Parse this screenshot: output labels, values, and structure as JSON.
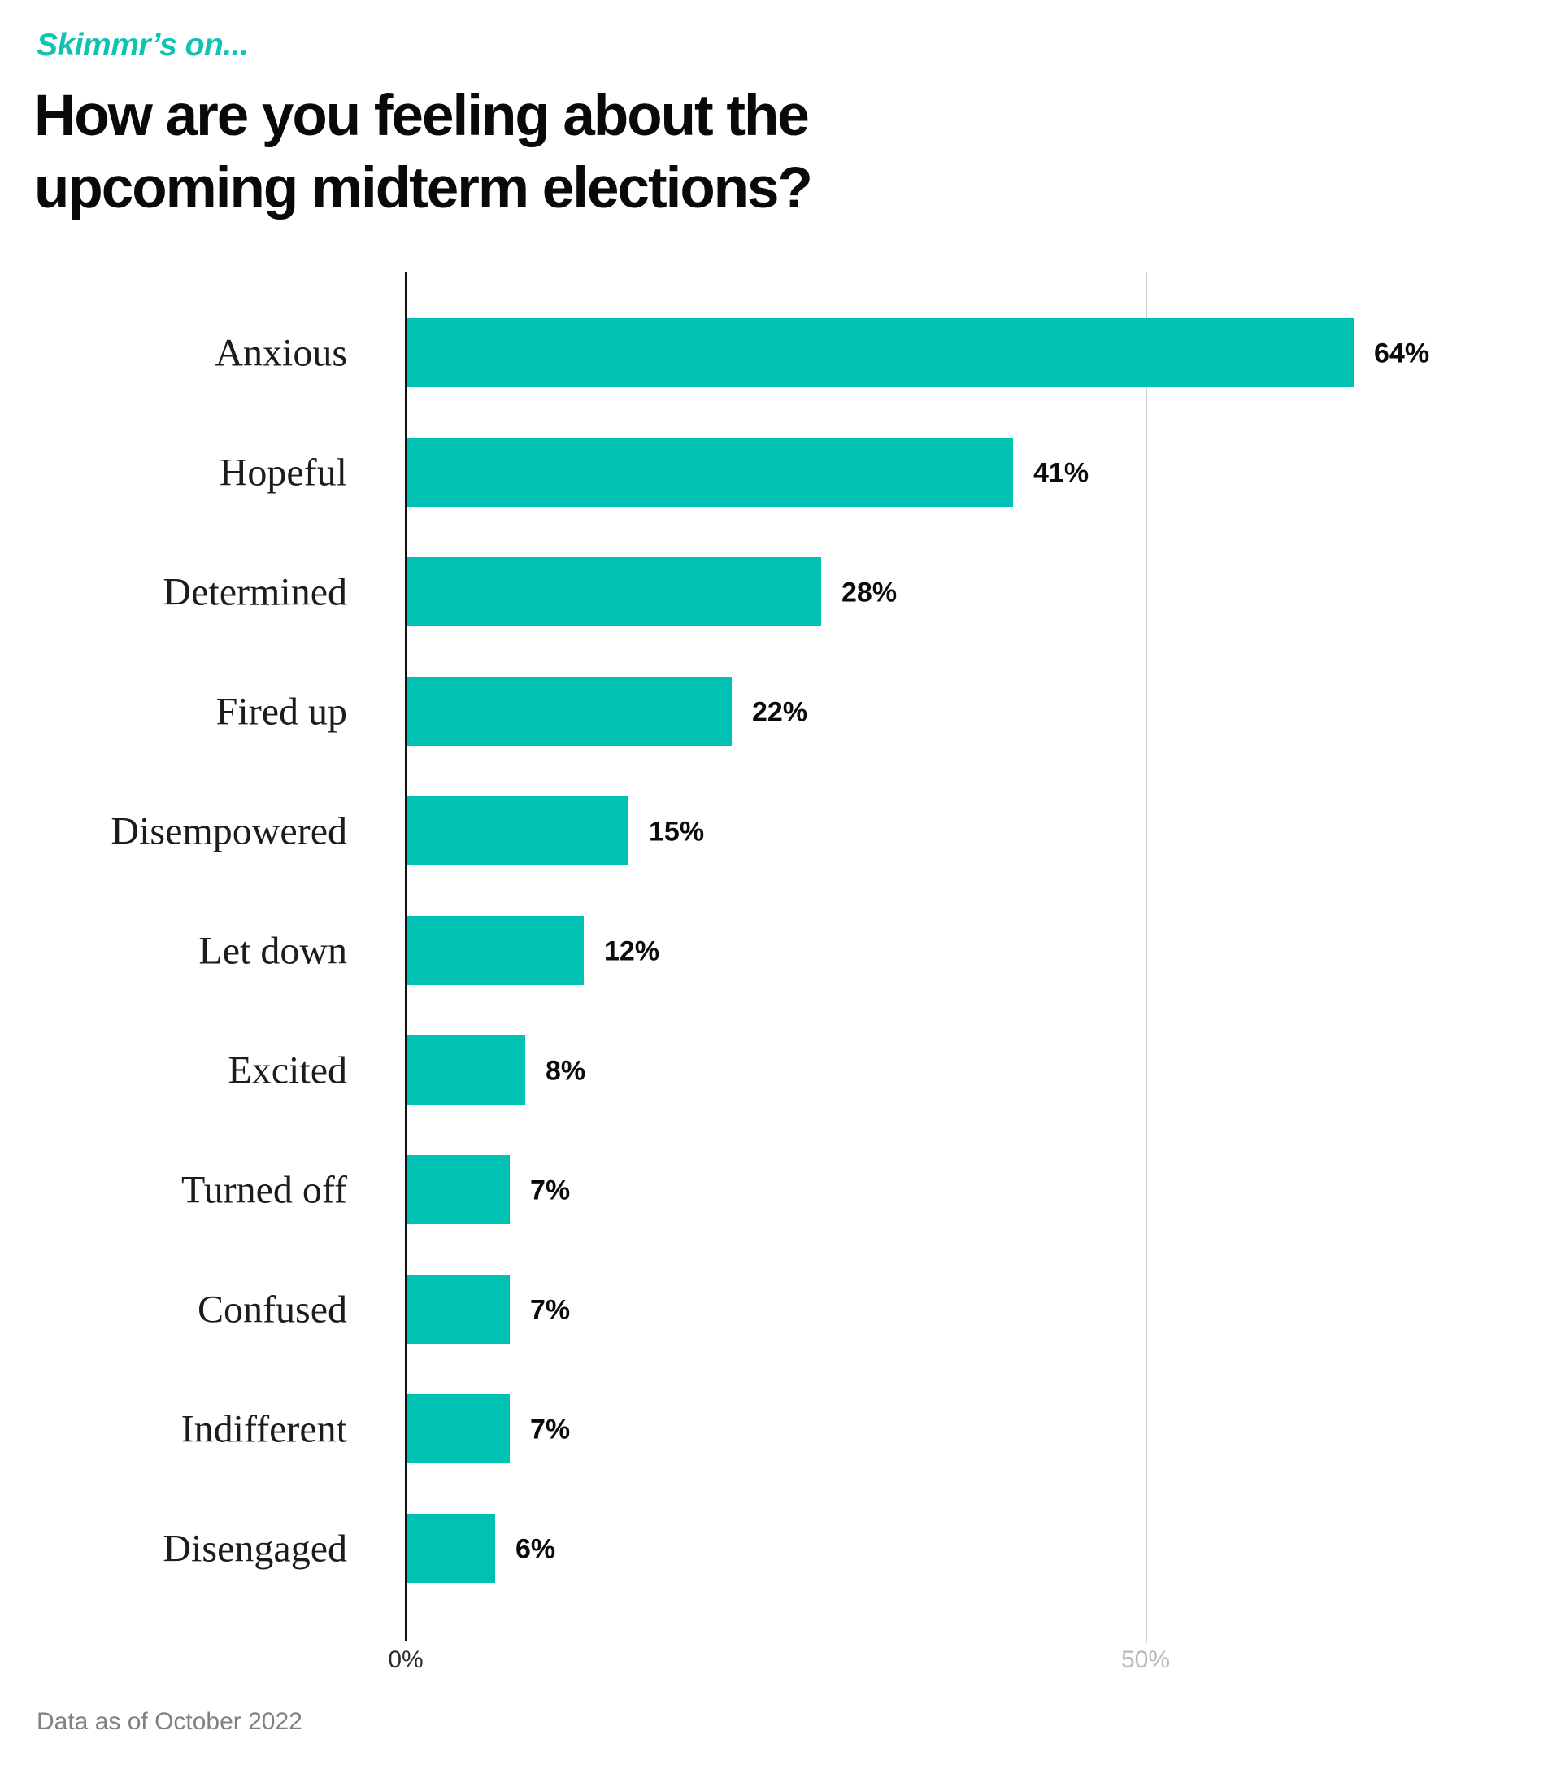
{
  "header": {
    "kicker": "Skimmr’s on...",
    "title_lines": [
      "How are you feeling about the",
      "upcoming midterm elections?"
    ]
  },
  "chart_data": {
    "type": "bar",
    "orientation": "horizontal",
    "title": "How are you feeling about the upcoming midterm elections?",
    "categories": [
      "Anxious",
      "Hopeful",
      "Determined",
      "Fired up",
      "Disempowered",
      "Let down",
      "Excited",
      "Turned off",
      "Confused",
      "Indifferent",
      "Disengaged"
    ],
    "values": [
      64,
      41,
      28,
      22,
      15,
      12,
      8,
      7,
      7,
      7,
      6
    ],
    "value_suffix": "%",
    "xlabel": "",
    "ylabel": "",
    "xlim": [
      0,
      77
    ],
    "ticks": [
      {
        "label": "0%",
        "percent": 0
      },
      {
        "label": "50%",
        "percent": 50
      }
    ],
    "legend": "none",
    "grid": "single vertical gridline at 50%"
  },
  "colors": {
    "bar": "#00C2B2",
    "kicker": "#0FC2B2",
    "axis": "#111111",
    "gridline": "#CDD3D3",
    "tick_zero": "#2b2b2b",
    "tick_muted": "#B5BBBB"
  },
  "footer": {
    "note": "Data as of October 2022"
  }
}
